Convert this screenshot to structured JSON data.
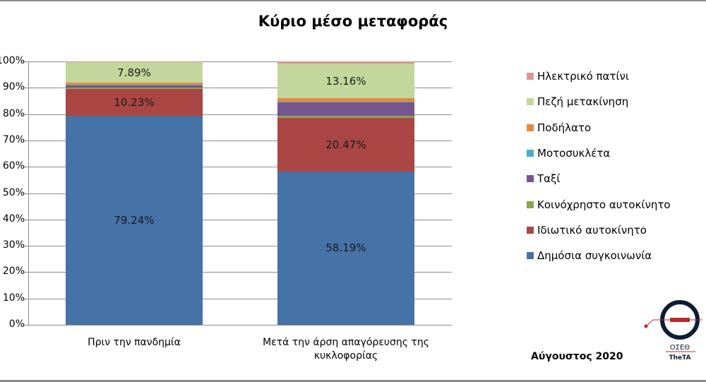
{
  "title": "Κύριο μέσο μεταφοράς",
  "y_ticks": [
    "0%",
    "10%",
    "20%",
    "30%",
    "40%",
    "50%",
    "60%",
    "70%",
    "80%",
    "90%",
    "100%"
  ],
  "categories": [
    "Πριν την πανδημία",
    "Μετά την άρση απαγόρευσης της κυκλοφορίας"
  ],
  "footer": {
    "date": "Αύγουστος 2020",
    "logo_text_top": "ΟΣΕΘ",
    "logo_text_bottom": "TheTA"
  },
  "legend": [
    {
      "name": "Ηλεκτρικό πατίνι",
      "color": "#d99694"
    },
    {
      "name": "Πεζή μετακίνηση",
      "color": "#c3d69b"
    },
    {
      "name": "Ποδήλατο",
      "color": "#e58a3a"
    },
    {
      "name": "Μοτοσυκλέτα",
      "color": "#4aacc6"
    },
    {
      "name": "Ταξί",
      "color": "#77558f"
    },
    {
      "name": "Κοινόχρηστο αυτοκίνητο",
      "color": "#8aa54b"
    },
    {
      "name": "Ιδιωτικό αυτοκίνητο",
      "color": "#aa4643"
    },
    {
      "name": "Δημόσια συγκοινωνία",
      "color": "#4572a7"
    }
  ],
  "chart_data": {
    "type": "bar",
    "stacked": true,
    "percent_stacked": true,
    "title": "Κύριο μέσο μεταφοράς",
    "xlabel": "",
    "ylabel": "",
    "ylim": [
      0,
      100
    ],
    "y_tick_labels": [
      "0%",
      "10%",
      "20%",
      "30%",
      "40%",
      "50%",
      "60%",
      "70%",
      "80%",
      "90%",
      "100%"
    ],
    "grid": "horizontal",
    "legend_position": "right",
    "categories": [
      "Πριν την πανδημία",
      "Μετά την άρση απαγόρευσης της κυκλοφορίας"
    ],
    "series": [
      {
        "name": "Δημόσια συγκοινωνία",
        "color": "#4572a7",
        "values": [
          79.24,
          58.19
        ],
        "labels": [
          "79.24%",
          "58.19%"
        ]
      },
      {
        "name": "Ιδιωτικό αυτοκίνητο",
        "color": "#aa4643",
        "values": [
          10.23,
          20.47
        ],
        "labels": [
          "10.23%",
          "20.47%"
        ]
      },
      {
        "name": "Κοινόχρηστο αυτοκίνητο",
        "color": "#8aa54b",
        "values": [
          0.6,
          0.8
        ]
      },
      {
        "name": "Ταξί",
        "color": "#77558f",
        "values": [
          1.0,
          4.9
        ]
      },
      {
        "name": "Μοτοσυκλέτα",
        "color": "#4aacc6",
        "values": [
          0.2,
          0.3
        ]
      },
      {
        "name": "Ποδήλατο",
        "color": "#e58a3a",
        "values": [
          0.6,
          1.3
        ]
      },
      {
        "name": "Πεζή μετακίνηση",
        "color": "#c3d69b",
        "values": [
          7.89,
          13.16
        ],
        "labels": [
          "7.89%",
          "13.16%"
        ]
      },
      {
        "name": "Ηλεκτρικό πατίνι",
        "color": "#d99694",
        "values": [
          0.2,
          0.9
        ]
      }
    ]
  }
}
